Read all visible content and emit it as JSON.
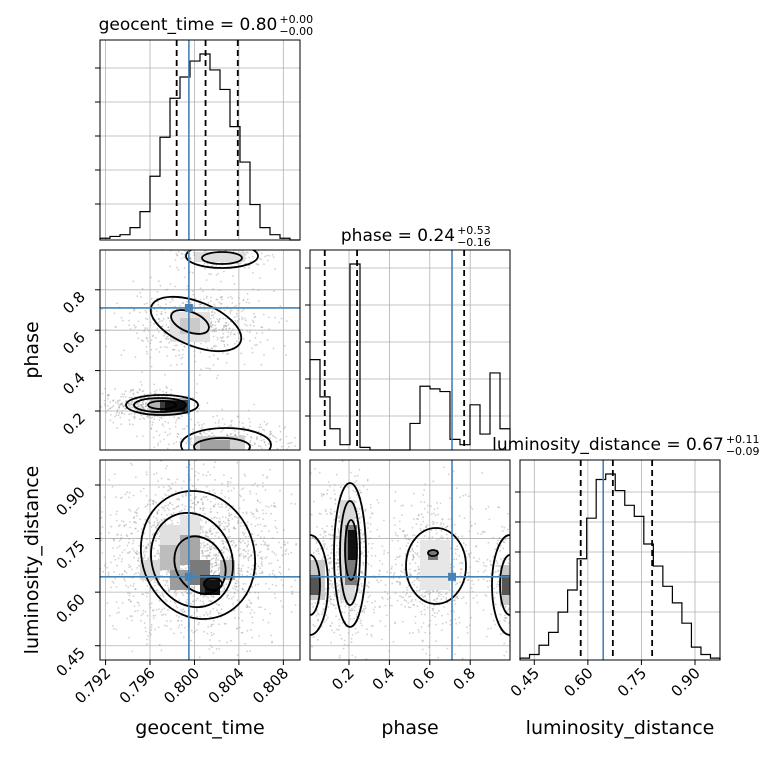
{
  "chart_data": {
    "type": "corner",
    "parameters": [
      "geocent_time",
      "phase",
      "luminosity_distance"
    ],
    "truths": {
      "geocent_time": 0.7995,
      "phase": 0.71,
      "luminosity_distance": 0.643
    },
    "titles": [
      {
        "param": "geocent_time",
        "text": "geocent_time = 0.80",
        "sup": "+0.00",
        "sub": "−0.00"
      },
      {
        "param": "phase",
        "text": "phase = 0.24",
        "sup": "+0.53",
        "sub": "−0.16"
      },
      {
        "param": "luminosity_distance",
        "text": "luminosity_distance = 0.67",
        "sup": "+0.11",
        "sub": "−0.09"
      }
    ],
    "axis_labels": {
      "geocent_time": "geocent_time",
      "phase": "phase",
      "luminosity_distance": "luminosity_distance"
    },
    "ranges": {
      "geocent_time": [
        0.7915,
        0.8095
      ],
      "phase": [
        0.007,
        0.997
      ],
      "luminosity_distance": [
        0.41,
        0.97
      ]
    },
    "ticks": {
      "geocent_time": [
        "0.792",
        "0.796",
        "0.800",
        "0.804",
        "0.808"
      ],
      "phase_x": [
        "0.2",
        "0.4",
        "0.6",
        "0.8"
      ],
      "phase_y": [
        "0.2",
        "0.4",
        "0.6",
        "0.8"
      ],
      "luminosity_distance": [
        "0.45",
        "0.60",
        "0.75",
        "0.90"
      ]
    },
    "quantiles": {
      "geocent_time": [
        0.7984,
        0.801,
        0.8039
      ],
      "phase": [
        0.08,
        0.24,
        0.77
      ],
      "luminosity_distance": [
        0.58,
        0.67,
        0.78
      ]
    },
    "hist_geocent_time": [
      1,
      2,
      3,
      7,
      16,
      36,
      58,
      80,
      92,
      101,
      105,
      96,
      85,
      64,
      44,
      20,
      7,
      3,
      1,
      0
    ],
    "hist_phase": [
      34,
      20,
      8,
      2,
      70,
      1,
      0,
      0,
      0,
      0,
      10,
      24,
      23,
      22,
      4,
      2,
      17,
      6,
      29,
      8
    ],
    "hist_luminosity_distance": [
      1,
      3,
      8,
      15,
      26,
      38,
      55,
      77,
      98,
      101,
      92,
      84,
      78,
      63,
      51,
      40,
      31,
      20,
      7,
      3,
      1
    ],
    "grid": true
  }
}
